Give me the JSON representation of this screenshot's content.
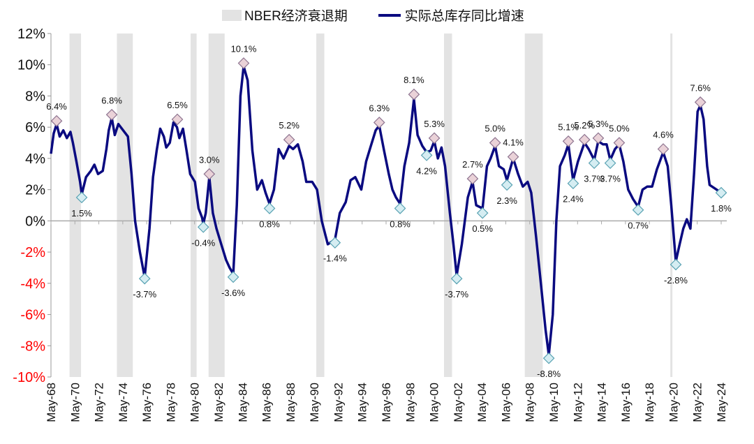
{
  "chart_data": {
    "type": "line",
    "title": "",
    "xlabel": "",
    "ylabel": "",
    "ylim": [
      -10,
      12
    ],
    "yticks": [
      "12%",
      "10%",
      "8%",
      "6%",
      "4%",
      "2%",
      "0%",
      "-2%",
      "-4%",
      "-6%",
      "-8%",
      "-10%"
    ],
    "xticks": [
      "May-68",
      "May-70",
      "May-72",
      "May-74",
      "May-76",
      "May-78",
      "May-80",
      "May-82",
      "May-84",
      "May-86",
      "May-88",
      "May-90",
      "May-92",
      "May-94",
      "May-96",
      "May-98",
      "May-00",
      "May-02",
      "May-04",
      "May-06",
      "May-08",
      "May-10",
      "May-12",
      "May-14",
      "May-16",
      "May-18",
      "May-20",
      "May-22",
      "May-24"
    ],
    "xrange": [
      1968.37,
      2024.37
    ],
    "legend": {
      "placement": "top",
      "recession": "NBER经济衰退期",
      "series": "实际总库存同比增速"
    },
    "colors": {
      "line": "#0a0a80",
      "recession": "#e3e3e3",
      "peak": "#ead2d8",
      "trough": "#d5edf2",
      "negative_tick": "#ff0000"
    },
    "recessions": [
      [
        1969.92,
        1970.88
      ],
      [
        1973.88,
        1975.21
      ],
      [
        1980.04,
        1980.54
      ],
      [
        1981.54,
        1982.88
      ],
      [
        1990.54,
        1991.21
      ],
      [
        2001.21,
        2001.88
      ],
      [
        2007.96,
        2009.46
      ],
      [
        2020.12,
        2020.29
      ]
    ],
    "series": [
      {
        "name": "实际总库存同比增速",
        "points": [
          [
            1968.37,
            4.3
          ],
          [
            1968.6,
            5.6
          ],
          [
            1968.84,
            6.2
          ],
          [
            1969.1,
            5.4
          ],
          [
            1969.4,
            5.8
          ],
          [
            1969.7,
            5.3
          ],
          [
            1970.0,
            5.7
          ],
          [
            1970.2,
            5.0
          ],
          [
            1970.5,
            3.8
          ],
          [
            1970.8,
            2.5
          ],
          [
            1970.94,
            1.7
          ],
          [
            1971.3,
            2.8
          ],
          [
            1971.7,
            3.2
          ],
          [
            1972.0,
            3.6
          ],
          [
            1972.3,
            3.0
          ],
          [
            1972.7,
            3.2
          ],
          [
            1973.0,
            4.6
          ],
          [
            1973.2,
            5.8
          ],
          [
            1973.45,
            6.6
          ],
          [
            1973.7,
            5.5
          ],
          [
            1974.0,
            6.2
          ],
          [
            1974.4,
            5.8
          ],
          [
            1974.8,
            5.4
          ],
          [
            1975.1,
            3.0
          ],
          [
            1975.4,
            0
          ],
          [
            1975.8,
            -2.0
          ],
          [
            1976.2,
            -3.6
          ],
          [
            1976.6,
            -0.5
          ],
          [
            1976.9,
            2.8
          ],
          [
            1977.2,
            4.5
          ],
          [
            1977.5,
            5.9
          ],
          [
            1977.8,
            5.4
          ],
          [
            1978.0,
            4.7
          ],
          [
            1978.3,
            5.0
          ],
          [
            1978.6,
            6.3
          ],
          [
            1978.9,
            6.0
          ],
          [
            1979.1,
            5.3
          ],
          [
            1979.4,
            5.9
          ],
          [
            1979.7,
            4.5
          ],
          [
            1980.0,
            3.0
          ],
          [
            1980.4,
            2.5
          ],
          [
            1980.7,
            0.8
          ],
          [
            1981.0,
            0.2
          ],
          [
            1981.1,
            -0.2
          ],
          [
            1981.3,
            0.5
          ],
          [
            1981.6,
            2.8
          ],
          [
            1981.9,
            0.5
          ],
          [
            1982.2,
            -0.5
          ],
          [
            1982.6,
            -1.5
          ],
          [
            1983.0,
            -2.5
          ],
          [
            1983.3,
            -3.0
          ],
          [
            1983.6,
            -3.4
          ],
          [
            1983.9,
            1.0
          ],
          [
            1984.2,
            8.0
          ],
          [
            1984.47,
            9.9
          ],
          [
            1984.8,
            9.0
          ],
          [
            1985.2,
            4.5
          ],
          [
            1985.6,
            2.0
          ],
          [
            1986.0,
            2.6
          ],
          [
            1986.3,
            1.8
          ],
          [
            1986.63,
            1.1
          ],
          [
            1987.0,
            2.0
          ],
          [
            1987.4,
            4.6
          ],
          [
            1987.8,
            4.0
          ],
          [
            1988.27,
            4.8
          ],
          [
            1988.6,
            4.6
          ],
          [
            1989.0,
            4.9
          ],
          [
            1989.4,
            3.8
          ],
          [
            1989.7,
            2.5
          ],
          [
            1990.2,
            2.5
          ],
          [
            1990.6,
            2.0
          ],
          [
            1991.0,
            0
          ],
          [
            1991.5,
            -1.5
          ],
          [
            1992.1,
            -1.2
          ],
          [
            1992.5,
            0.5
          ],
          [
            1993.0,
            1.2
          ],
          [
            1993.4,
            2.6
          ],
          [
            1993.8,
            2.8
          ],
          [
            1994.3,
            2.0
          ],
          [
            1994.7,
            3.8
          ],
          [
            1995.1,
            4.8
          ],
          [
            1995.5,
            5.8
          ],
          [
            1995.8,
            6.1
          ],
          [
            1996.2,
            4.5
          ],
          [
            1996.6,
            3.0
          ],
          [
            1996.9,
            2.0
          ],
          [
            1997.2,
            1.5
          ],
          [
            1997.54,
            1.1
          ],
          [
            1997.9,
            3.5
          ],
          [
            1998.3,
            5.0
          ],
          [
            1998.7,
            7.8
          ],
          [
            1999.0,
            5.5
          ],
          [
            1999.4,
            4.8
          ],
          [
            1999.76,
            4.4
          ],
          [
            2000.1,
            4.5
          ],
          [
            2000.4,
            5.1
          ],
          [
            2000.7,
            4.0
          ],
          [
            2001.0,
            4.7
          ],
          [
            2001.3,
            3.5
          ],
          [
            2001.7,
            0.5
          ],
          [
            2002.0,
            -1.5
          ],
          [
            2002.27,
            -3.5
          ],
          [
            2002.7,
            -1.5
          ],
          [
            2003.2,
            1.5
          ],
          [
            2003.6,
            2.5
          ],
          [
            2003.9,
            1.0
          ],
          [
            2004.43,
            0.8
          ],
          [
            2004.8,
            3.5
          ],
          [
            2005.1,
            4.0
          ],
          [
            2005.48,
            4.8
          ],
          [
            2005.8,
            3.5
          ],
          [
            2006.2,
            3.3
          ],
          [
            2006.47,
            2.6
          ],
          [
            2006.99,
            4.0
          ],
          [
            2007.4,
            3.0
          ],
          [
            2007.8,
            2.2
          ],
          [
            2008.2,
            2.5
          ],
          [
            2008.5,
            1.8
          ],
          [
            2008.9,
            -1.0
          ],
          [
            2009.3,
            -4.0
          ],
          [
            2009.7,
            -7.0
          ],
          [
            2009.97,
            -8.6
          ],
          [
            2010.3,
            -6.0
          ],
          [
            2010.6,
            0
          ],
          [
            2010.9,
            3.5
          ],
          [
            2011.3,
            4.2
          ],
          [
            2011.6,
            4.9
          ],
          [
            2012.0,
            2.6
          ],
          [
            2012.4,
            3.8
          ],
          [
            2012.95,
            5.0
          ],
          [
            2013.3,
            4.6
          ],
          [
            2013.76,
            3.9
          ],
          [
            2014.1,
            5.1
          ],
          [
            2014.5,
            4.9
          ],
          [
            2014.8,
            4.9
          ],
          [
            2015.1,
            3.9
          ],
          [
            2015.5,
            4.6
          ],
          [
            2015.85,
            4.9
          ],
          [
            2016.2,
            3.8
          ],
          [
            2016.6,
            2.0
          ],
          [
            2017.0,
            1.4
          ],
          [
            2017.43,
            0.9
          ],
          [
            2017.8,
            2.0
          ],
          [
            2018.2,
            2.2
          ],
          [
            2018.6,
            2.2
          ],
          [
            2019.0,
            3.3
          ],
          [
            2019.53,
            4.4
          ],
          [
            2019.9,
            3.5
          ],
          [
            2020.2,
            1.0
          ],
          [
            2020.58,
            -2.6
          ],
          [
            2020.9,
            -1.5
          ],
          [
            2021.2,
            -0.5
          ],
          [
            2021.5,
            0.1
          ],
          [
            2021.8,
            -0.5
          ],
          [
            2022.1,
            3.0
          ],
          [
            2022.4,
            7.0
          ],
          [
            2022.63,
            7.4
          ],
          [
            2022.9,
            6.5
          ],
          [
            2023.2,
            3.5
          ],
          [
            2023.4,
            2.3
          ],
          [
            2023.8,
            2.1
          ],
          [
            2024.37,
            1.8
          ]
        ]
      }
    ],
    "annotations": [
      {
        "x": 1968.84,
        "y": 6.4,
        "label": "6.4%",
        "kind": "peak"
      },
      {
        "x": 1970.94,
        "y": 1.5,
        "label": "1.5%",
        "kind": "trough"
      },
      {
        "x": 1973.45,
        "y": 6.8,
        "label": "6.8%",
        "kind": "peak"
      },
      {
        "x": 1976.2,
        "y": -3.7,
        "label": "-3.7%",
        "kind": "trough"
      },
      {
        "x": 1978.93,
        "y": 6.5,
        "label": "6.5%",
        "kind": "peak"
      },
      {
        "x": 1981.1,
        "y": -0.4,
        "label": "-0.4%",
        "kind": "trough"
      },
      {
        "x": 1981.6,
        "y": 3.0,
        "label": "3.0%",
        "kind": "peak"
      },
      {
        "x": 1983.6,
        "y": -3.6,
        "label": "-3.6%",
        "kind": "trough"
      },
      {
        "x": 1984.47,
        "y": 10.1,
        "label": "10.1%",
        "kind": "peak"
      },
      {
        "x": 1986.63,
        "y": 0.8,
        "label": "0.8%",
        "kind": "trough"
      },
      {
        "x": 1988.27,
        "y": 5.2,
        "label": "5.2%",
        "kind": "peak"
      },
      {
        "x": 1992.1,
        "y": -1.4,
        "label": "-1.4%",
        "kind": "trough"
      },
      {
        "x": 1995.8,
        "y": 6.3,
        "label": "6.3%",
        "kind": "peak"
      },
      {
        "x": 1997.54,
        "y": 0.8,
        "label": "0.8%",
        "kind": "trough"
      },
      {
        "x": 1998.7,
        "y": 8.1,
        "label": "8.1%",
        "kind": "peak"
      },
      {
        "x": 1999.76,
        "y": 4.2,
        "label": "4.2%",
        "kind": "trough"
      },
      {
        "x": 2000.4,
        "y": 5.3,
        "label": "5.3%",
        "kind": "peak"
      },
      {
        "x": 2002.27,
        "y": -3.7,
        "label": "-3.7%",
        "kind": "trough"
      },
      {
        "x": 2003.6,
        "y": 2.7,
        "label": "2.7%",
        "kind": "peak"
      },
      {
        "x": 2004.43,
        "y": 0.5,
        "label": "0.5%",
        "kind": "trough"
      },
      {
        "x": 2005.48,
        "y": 5.0,
        "label": "5.0%",
        "kind": "peak"
      },
      {
        "x": 2006.47,
        "y": 2.3,
        "label": "2.3%",
        "kind": "trough"
      },
      {
        "x": 2006.99,
        "y": 4.1,
        "label": "4.1%",
        "kind": "peak"
      },
      {
        "x": 2009.97,
        "y": -8.8,
        "label": "-8.8%",
        "kind": "trough"
      },
      {
        "x": 2011.6,
        "y": 5.1,
        "label": "5.1%",
        "kind": "peak"
      },
      {
        "x": 2012.0,
        "y": 2.4,
        "label": "2.4%",
        "kind": "trough"
      },
      {
        "x": 2012.95,
        "y": 5.2,
        "label": "5.2%",
        "kind": "peak"
      },
      {
        "x": 2013.76,
        "y": 3.7,
        "label": "3.7%",
        "kind": "trough"
      },
      {
        "x": 2014.1,
        "y": 5.3,
        "label": "5.3%",
        "kind": "peak"
      },
      {
        "x": 2015.1,
        "y": 3.7,
        "label": "3.7%",
        "kind": "trough"
      },
      {
        "x": 2015.85,
        "y": 5.0,
        "label": "5.0%",
        "kind": "peak"
      },
      {
        "x": 2017.43,
        "y": 0.7,
        "label": "0.7%",
        "kind": "trough"
      },
      {
        "x": 2019.53,
        "y": 4.6,
        "label": "4.6%",
        "kind": "peak"
      },
      {
        "x": 2020.58,
        "y": -2.8,
        "label": "-2.8%",
        "kind": "trough"
      },
      {
        "x": 2022.63,
        "y": 7.6,
        "label": "7.6%",
        "kind": "peak"
      },
      {
        "x": 2024.37,
        "y": 1.8,
        "label": "1.8%",
        "kind": "trough"
      }
    ]
  }
}
